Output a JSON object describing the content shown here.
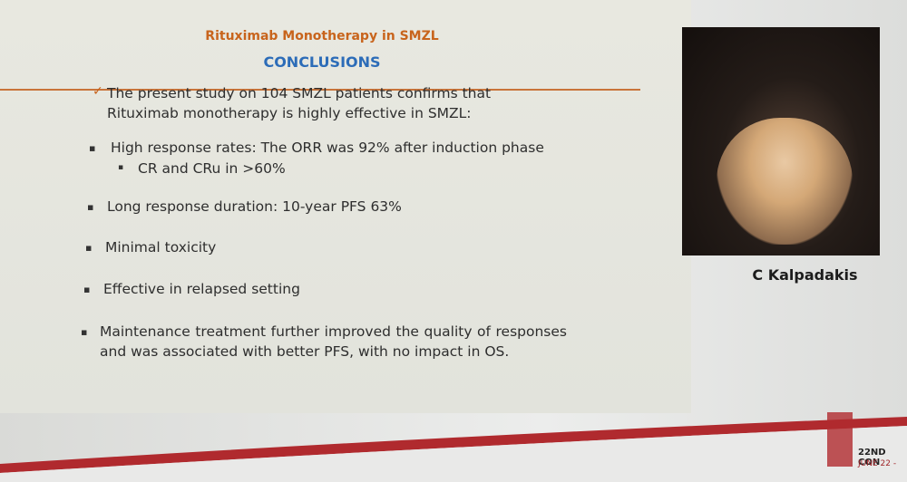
{
  "slide": {
    "title": "Rituximab Monotherapy in SMZL",
    "subtitle": "CONCLUSIONS",
    "intro": "The present study on 104 SMZL patients confirms that Rituximab monotherapy is highly effective in SMZL:",
    "bullets": [
      {
        "text": "High response rates: The ORR was 92% after induction phase",
        "sub": "CR and CRu in >60%"
      },
      {
        "text": "Long response duration: 10-year PFS 63%"
      },
      {
        "text": "Minimal toxicity"
      },
      {
        "text": "Effective in relapsed setting"
      },
      {
        "text": "Maintenance treatment further improved the quality of responses and was associated with better PFS, with no impact in OS."
      }
    ]
  },
  "speaker": {
    "name": "C Kalpadakis"
  },
  "congress": {
    "line1": "22ND CON",
    "line2": "JUNE 22 -"
  }
}
